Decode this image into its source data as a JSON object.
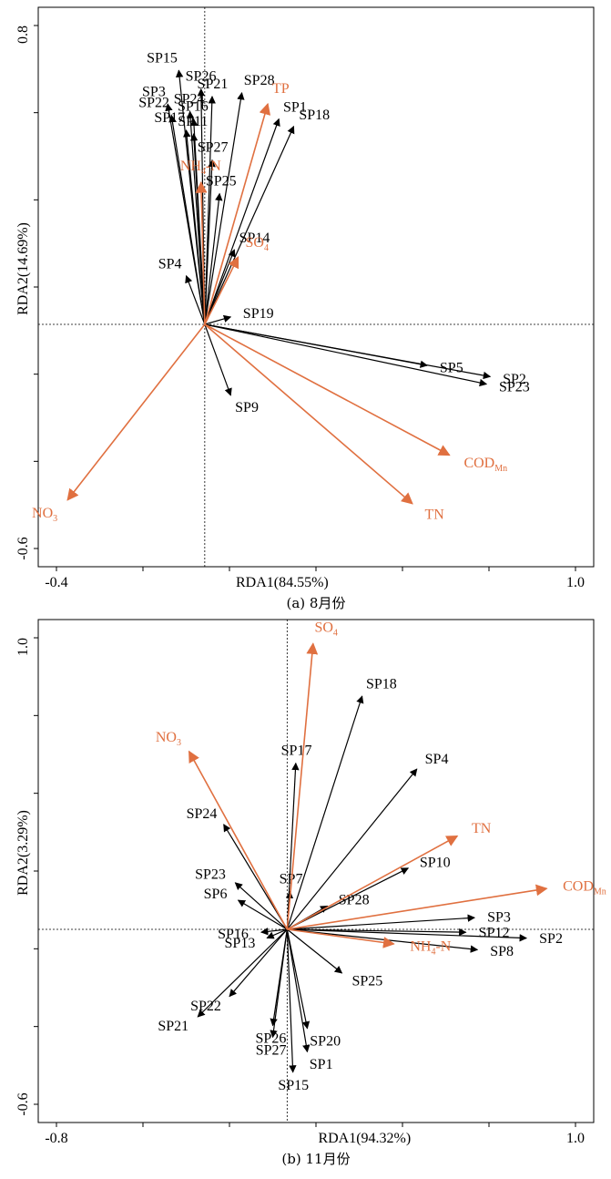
{
  "colors": {
    "site": "#000000",
    "env": "#e07040"
  },
  "chart_data": [
    {
      "type": "scatter",
      "subtype": "rda-biplot",
      "caption": "(a) 8月份",
      "xlabel": "RDA1(84.55%)",
      "ylabel": "RDA2(14.69%)",
      "x_ticks": [
        "-0.4",
        "1.0"
      ],
      "y_ticks": [
        "0.8",
        "-0.6"
      ],
      "xlim": [
        -0.4,
        1.0
      ],
      "ylim": [
        -0.6,
        0.8
      ],
      "sites": [
        {
          "name": "SP15",
          "x": -0.07,
          "y": 0.68
        },
        {
          "name": "SP26",
          "x": -0.01,
          "y": 0.63
        },
        {
          "name": "SP21",
          "x": 0.02,
          "y": 0.61
        },
        {
          "name": "SP28",
          "x": 0.1,
          "y": 0.62
        },
        {
          "name": "SP3",
          "x": -0.1,
          "y": 0.59
        },
        {
          "name": "SP24",
          "x": -0.04,
          "y": 0.57
        },
        {
          "name": "SP22",
          "x": -0.09,
          "y": 0.56
        },
        {
          "name": "SP16",
          "x": -0.03,
          "y": 0.55
        },
        {
          "name": "SP17",
          "x": -0.05,
          "y": 0.52
        },
        {
          "name": "SP11",
          "x": -0.03,
          "y": 0.51
        },
        {
          "name": "SP27",
          "x": 0.02,
          "y": 0.44
        },
        {
          "name": "SP25",
          "x": 0.04,
          "y": 0.35
        },
        {
          "name": "SP14",
          "x": 0.08,
          "y": 0.2
        },
        {
          "name": "SP4",
          "x": -0.05,
          "y": 0.13
        },
        {
          "name": "SP19",
          "x": 0.07,
          "y": 0.02
        },
        {
          "name": "SP1",
          "x": 0.2,
          "y": 0.55
        },
        {
          "name": "SP18",
          "x": 0.24,
          "y": 0.53
        },
        {
          "name": "SP5",
          "x": 0.6,
          "y": -0.11
        },
        {
          "name": "SP2",
          "x": 0.77,
          "y": -0.14
        },
        {
          "name": "SP23",
          "x": 0.76,
          "y": -0.16
        },
        {
          "name": "SP9",
          "x": 0.07,
          "y": -0.19
        }
      ],
      "env": [
        {
          "name": "TP",
          "x": 0.17,
          "y": 0.59
        },
        {
          "name": "NH4-N",
          "x": -0.01,
          "y": 0.38
        },
        {
          "name": "SO4",
          "x": 0.09,
          "y": 0.18
        },
        {
          "name": "CODMn",
          "x": 0.66,
          "y": -0.35
        },
        {
          "name": "TN",
          "x": 0.56,
          "y": -0.48
        },
        {
          "name": "NO3",
          "x": -0.37,
          "y": -0.47
        }
      ]
    },
    {
      "type": "scatter",
      "subtype": "rda-biplot",
      "caption": "(b) 11月份",
      "xlabel": "RDA1(94.32%)",
      "ylabel": "RDA2(3.29%)",
      "x_ticks": [
        "-0.8",
        "1.0"
      ],
      "y_ticks": [
        "1.0",
        "-0.6"
      ],
      "xlim": [
        -0.8,
        1.0
      ],
      "ylim": [
        -0.6,
        1.0
      ],
      "sites": [
        {
          "name": "SP18",
          "x": 0.26,
          "y": 0.8
        },
        {
          "name": "SP17",
          "x": 0.03,
          "y": 0.57
        },
        {
          "name": "SP4",
          "x": 0.45,
          "y": 0.55
        },
        {
          "name": "SP10",
          "x": 0.42,
          "y": 0.21
        },
        {
          "name": "SP28",
          "x": 0.14,
          "y": 0.08
        },
        {
          "name": "SP7",
          "x": 0.01,
          "y": 0.13
        },
        {
          "name": "SP24",
          "x": -0.22,
          "y": 0.36
        },
        {
          "name": "SP23",
          "x": -0.18,
          "y": 0.16
        },
        {
          "name": "SP6",
          "x": -0.17,
          "y": 0.1
        },
        {
          "name": "SP16",
          "x": -0.09,
          "y": -0.01
        },
        {
          "name": "SP13",
          "x": -0.07,
          "y": -0.03
        },
        {
          "name": "SP3",
          "x": 0.65,
          "y": 0.04
        },
        {
          "name": "SP12",
          "x": 0.62,
          "y": -0.01
        },
        {
          "name": "SP2",
          "x": 0.83,
          "y": -0.03
        },
        {
          "name": "SP8",
          "x": 0.66,
          "y": -0.07
        },
        {
          "name": "SP25",
          "x": 0.19,
          "y": -0.15
        },
        {
          "name": "SP22",
          "x": -0.2,
          "y": -0.23
        },
        {
          "name": "SP21",
          "x": -0.31,
          "y": -0.3
        },
        {
          "name": "SP26",
          "x": -0.05,
          "y": -0.33
        },
        {
          "name": "SP27",
          "x": -0.05,
          "y": -0.37
        },
        {
          "name": "SP20",
          "x": 0.07,
          "y": -0.34
        },
        {
          "name": "SP1",
          "x": 0.07,
          "y": -0.42
        },
        {
          "name": "SP15",
          "x": 0.02,
          "y": -0.49
        }
      ],
      "env": [
        {
          "name": "SO4",
          "x": 0.09,
          "y": 0.98
        },
        {
          "name": "NO3",
          "x": -0.34,
          "y": 0.61
        },
        {
          "name": "TN",
          "x": 0.59,
          "y": 0.32
        },
        {
          "name": "CODMn",
          "x": 0.9,
          "y": 0.14
        },
        {
          "name": "NH4-N",
          "x": 0.37,
          "y": -0.05
        }
      ]
    }
  ]
}
